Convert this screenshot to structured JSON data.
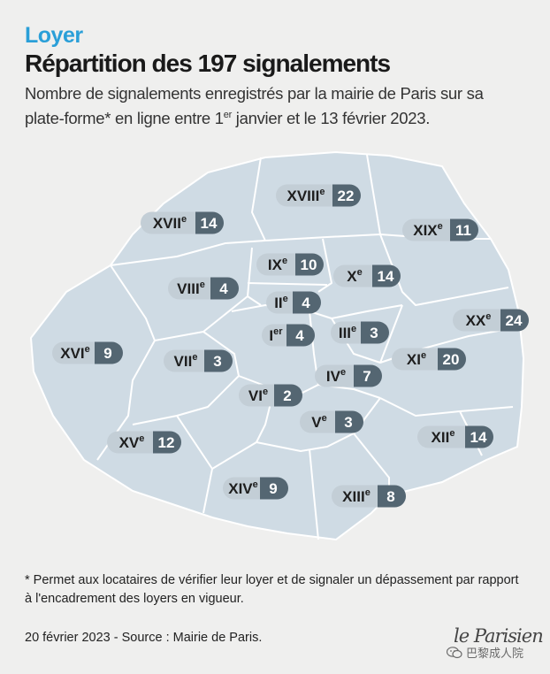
{
  "header": {
    "kicker": "Loyer",
    "title": "Répartition des 197 signalements",
    "subtitle_part1": "Nombre de signalements enregistrés par la mairie de Paris sur sa plate-forme* en ligne entre 1",
    "subtitle_sup": "er",
    "subtitle_part2": " janvier et le 13 février 2023."
  },
  "map": {
    "colors": {
      "fill": "#cfdbe4",
      "border": "#ffffff",
      "badge_left": "#c3ced6",
      "badge_right": "#546672",
      "badge_right_text": "#ffffff",
      "badge_left_text": "#1e1e1e"
    },
    "arrondissements": [
      {
        "id": "I",
        "roman": "I",
        "sup": "er",
        "count": 4
      },
      {
        "id": "II",
        "roman": "II",
        "sup": "e",
        "count": 4
      },
      {
        "id": "III",
        "roman": "III",
        "sup": "e",
        "count": 3
      },
      {
        "id": "IV",
        "roman": "IV",
        "sup": "e",
        "count": 7
      },
      {
        "id": "V",
        "roman": "V",
        "sup": "e",
        "count": 3
      },
      {
        "id": "VI",
        "roman": "VI",
        "sup": "e",
        "count": 2
      },
      {
        "id": "VII",
        "roman": "VII",
        "sup": "e",
        "count": 3
      },
      {
        "id": "VIII",
        "roman": "VIII",
        "sup": "e",
        "count": 4
      },
      {
        "id": "IX",
        "roman": "IX",
        "sup": "e",
        "count": 10
      },
      {
        "id": "X",
        "roman": "X",
        "sup": "e",
        "count": 14
      },
      {
        "id": "XI",
        "roman": "XI",
        "sup": "e",
        "count": 20
      },
      {
        "id": "XII",
        "roman": "XII",
        "sup": "e",
        "count": 14
      },
      {
        "id": "XIII",
        "roman": "XIII",
        "sup": "e",
        "count": 8
      },
      {
        "id": "XIV",
        "roman": "XIV",
        "sup": "e",
        "count": 9
      },
      {
        "id": "XV",
        "roman": "XV",
        "sup": "e",
        "count": 12
      },
      {
        "id": "XVI",
        "roman": "XVI",
        "sup": "e",
        "count": 9
      },
      {
        "id": "XVII",
        "roman": "XVII",
        "sup": "e",
        "count": 14
      },
      {
        "id": "XVIII",
        "roman": "XVIII",
        "sup": "e",
        "count": 22
      },
      {
        "id": "XIX",
        "roman": "XIX",
        "sup": "e",
        "count": 11
      },
      {
        "id": "XX",
        "roman": "XX",
        "sup": "e",
        "count": 24
      }
    ]
  },
  "footer": {
    "footnote": "* Permet aux locataires de vérifier leur loyer et de signaler un dépassement par rapport à l'encadrement des loyers en vigueur.",
    "date_source": "20 février 2023 - Source : Mairie de Paris.",
    "brand": "le Parisien",
    "watermark": "巴黎成人院",
    "watermark_icon": "wechat-icon"
  }
}
